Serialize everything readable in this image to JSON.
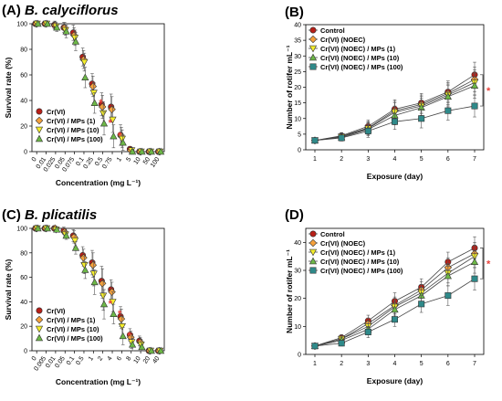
{
  "figure": {
    "colors": {
      "control": "#b81f17",
      "noec": "#f5a13c",
      "mp1": "#f5ee2c",
      "mp10": "#6db847",
      "mp100": "#2f8a8a",
      "sig": "#e8413a",
      "errbar": "#555555",
      "line": "#444444"
    },
    "marker_shapes": {
      "control": "circle",
      "noec": "diamond",
      "mp1": "triangle-down",
      "mp10": "triangle-up",
      "mp100": "square"
    }
  },
  "chart_data": [
    {
      "id": "A",
      "type": "scatter",
      "panel_label": "(A)",
      "title": "B. calyciflorus",
      "xlabel": "Concentration (mg L⁻¹)",
      "ylabel": "Survival rate (%)",
      "ylim": [
        0,
        100
      ],
      "yticks": [
        0,
        20,
        40,
        60,
        80,
        100
      ],
      "legend_position": "bottom-left",
      "categories": [
        "0",
        "0.01",
        "0.025",
        "0.05",
        "0.075",
        "0.1",
        "0.25",
        "0.5",
        "0.75",
        "1",
        "5",
        "10",
        "50",
        "100"
      ],
      "series": [
        {
          "name": "Cr(VI)",
          "key": "control",
          "values": [
            100,
            100,
            99,
            97,
            93,
            74,
            53,
            37,
            35,
            13,
            2,
            0,
            0,
            0
          ],
          "errors": [
            0,
            0,
            3,
            4,
            6,
            7,
            8,
            9,
            10,
            8,
            2,
            0,
            0,
            0
          ]
        },
        {
          "name": "Cr(VI) / MPs (1)",
          "key": "noec",
          "values": [
            100,
            100,
            99,
            97,
            91,
            72,
            51,
            35,
            33,
            12,
            1,
            0,
            0,
            0
          ],
          "errors": [
            0,
            0,
            3,
            4,
            6,
            7,
            8,
            9,
            10,
            7,
            2,
            0,
            0,
            0
          ]
        },
        {
          "name": "Cr(VI) / MPs (10)",
          "key": "mp1",
          "values": [
            100,
            100,
            98,
            95,
            89,
            70,
            46,
            30,
            25,
            10,
            1,
            0,
            0,
            0
          ],
          "errors": [
            0,
            0,
            3,
            4,
            6,
            7,
            8,
            9,
            10,
            7,
            2,
            0,
            0,
            0
          ]
        },
        {
          "name": "Cr(VI) / MPs (100)",
          "key": "mp10",
          "values": [
            100,
            100,
            97,
            94,
            86,
            58,
            38,
            22,
            12,
            7,
            0,
            0,
            0,
            0
          ],
          "errors": [
            0,
            0,
            3,
            5,
            7,
            8,
            8,
            9,
            9,
            6,
            2,
            0,
            0,
            0
          ]
        }
      ],
      "significance": [
        {
          "category": "0.25",
          "label": "*"
        },
        {
          "category": "0.5",
          "label": "*"
        },
        {
          "category": "0.75",
          "label": "*"
        }
      ]
    },
    {
      "id": "B",
      "type": "line",
      "panel_label": "(B)",
      "xlabel": "Exposure (day)",
      "ylabel": "Number of rotifer mL⁻¹",
      "xlim": [
        1,
        7
      ],
      "xticks": [
        1,
        2,
        3,
        4,
        5,
        6,
        7
      ],
      "ylim": [
        0,
        40
      ],
      "yticks": [
        0,
        5,
        10,
        15,
        20,
        25,
        30,
        35,
        40
      ],
      "legend_position": "top-left",
      "x": [
        1,
        2,
        3,
        4,
        5,
        6,
        7
      ],
      "series": [
        {
          "name": "Control",
          "key": "control",
          "values": [
            3,
            4.5,
            7.5,
            13,
            15,
            18.5,
            24
          ],
          "errors": [
            0,
            1,
            2,
            3,
            3,
            3.5,
            4
          ]
        },
        {
          "name": "Cr(VI) (NOEC)",
          "key": "noec",
          "values": [
            3,
            4.3,
            7,
            12.5,
            14.5,
            18,
            22.5
          ],
          "errors": [
            0,
            1,
            2,
            3,
            3,
            3.5,
            4
          ]
        },
        {
          "name": "Cr(VI) (NOEC) / MPs (1)",
          "key": "mp1",
          "values": [
            3,
            4.2,
            6.8,
            12,
            14,
            17.5,
            21.5
          ],
          "errors": [
            0,
            1,
            2,
            3,
            3,
            3.5,
            4
          ]
        },
        {
          "name": "Cr(VI) (NOEC) / MPs (10)",
          "key": "mp10",
          "values": [
            3,
            4,
            6.5,
            11,
            13.5,
            17,
            20.5
          ],
          "errors": [
            0,
            1,
            2,
            3,
            3,
            3.5,
            4
          ]
        },
        {
          "name": "Cr(VI) (NOEC) / MPs (100)",
          "key": "mp100",
          "values": [
            3,
            3.8,
            6,
            9,
            10,
            12.5,
            14
          ],
          "errors": [
            0,
            1,
            2,
            2.5,
            3,
            3,
            3.5
          ]
        }
      ],
      "significance": [
        {
          "x": 7,
          "label": "*"
        }
      ]
    },
    {
      "id": "C",
      "type": "scatter",
      "panel_label": "(C)",
      "title": "B. plicatilis",
      "xlabel": "Concentration (mg L⁻¹)",
      "ylabel": "Survival rate (%)",
      "ylim": [
        0,
        100
      ],
      "yticks": [
        0,
        20,
        40,
        60,
        80,
        100
      ],
      "legend_position": "bottom-left",
      "categories": [
        "0",
        "0.005",
        "0.01",
        "0.05",
        "0.1",
        "0.5",
        "1",
        "2",
        "4",
        "6",
        "8",
        "10",
        "20",
        "40"
      ],
      "series": [
        {
          "name": "Cr(VI)",
          "key": "control",
          "values": [
            100,
            100,
            100,
            98,
            94,
            78,
            72,
            57,
            50,
            28,
            13,
            8,
            0,
            0
          ],
          "errors": [
            0,
            0,
            0,
            3,
            5,
            7,
            10,
            12,
            8,
            8,
            5,
            4,
            0,
            0
          ]
        },
        {
          "name": "Cr(VI) / MPs (1)",
          "key": "noec",
          "values": [
            100,
            100,
            100,
            97,
            93,
            76,
            70,
            55,
            48,
            26,
            11,
            7,
            0,
            0
          ],
          "errors": [
            0,
            0,
            0,
            3,
            5,
            7,
            10,
            12,
            8,
            8,
            5,
            4,
            0,
            0
          ]
        },
        {
          "name": "Cr(VI) / MPs (10)",
          "key": "mp1",
          "values": [
            100,
            100,
            99,
            95,
            90,
            70,
            63,
            45,
            40,
            20,
            7,
            5,
            0,
            0
          ],
          "errors": [
            0,
            0,
            0,
            3,
            5,
            7,
            10,
            12,
            8,
            8,
            5,
            4,
            0,
            0
          ]
        },
        {
          "name": "Cr(VI) / MPs (100)",
          "key": "mp10",
          "values": [
            100,
            100,
            99,
            94,
            84,
            66,
            56,
            38,
            30,
            12,
            5,
            3,
            0,
            0
          ],
          "errors": [
            0,
            0,
            0,
            3,
            5,
            7,
            10,
            12,
            8,
            7,
            5,
            3,
            0,
            0
          ]
        }
      ],
      "significance": [
        {
          "category": "2",
          "label": "*"
        },
        {
          "category": "4",
          "label": "*"
        },
        {
          "category": "6",
          "label": "*"
        }
      ]
    },
    {
      "id": "D",
      "type": "line",
      "panel_label": "(D)",
      "xlabel": "Exposure (day)",
      "ylabel": "Number of rotifer mL⁻¹",
      "xlim": [
        1,
        7
      ],
      "xticks": [
        1,
        2,
        3,
        4,
        5,
        6,
        7
      ],
      "ylim": [
        0,
        45
      ],
      "yticks": [
        0,
        10,
        20,
        30,
        40
      ],
      "legend_position": "top-left",
      "x": [
        1,
        2,
        3,
        4,
        5,
        6,
        7
      ],
      "series": [
        {
          "name": "Control",
          "key": "control",
          "values": [
            3,
            6,
            12,
            19,
            24,
            33,
            38
          ],
          "errors": [
            0,
            1,
            2,
            3,
            3,
            3.5,
            4
          ]
        },
        {
          "name": "Cr(VI) (NOEC)",
          "key": "noec",
          "values": [
            3,
            5.5,
            11,
            17.5,
            23,
            31,
            36
          ],
          "errors": [
            0,
            1,
            2,
            3,
            3,
            3.5,
            4
          ]
        },
        {
          "name": "Cr(VI) (NOEC) / MPs (1)",
          "key": "mp1",
          "values": [
            3,
            5.5,
            10,
            17,
            22,
            29,
            35
          ],
          "errors": [
            0,
            1,
            2,
            3,
            3,
            3.5,
            4
          ]
        },
        {
          "name": "Cr(VI) (NOEC) / MPs (10)",
          "key": "mp10",
          "values": [
            3,
            5,
            9,
            16,
            21,
            28,
            33
          ],
          "errors": [
            0,
            1,
            2,
            3,
            3,
            3.5,
            4
          ]
        },
        {
          "name": "Cr(VI) (NOEC) / MPs (100)",
          "key": "mp100",
          "values": [
            3,
            4,
            8,
            12.5,
            18,
            21,
            27
          ],
          "errors": [
            0,
            1,
            2,
            2.5,
            3,
            3.5,
            4
          ]
        }
      ],
      "significance": [
        {
          "x": 7,
          "label": "*"
        }
      ]
    }
  ]
}
